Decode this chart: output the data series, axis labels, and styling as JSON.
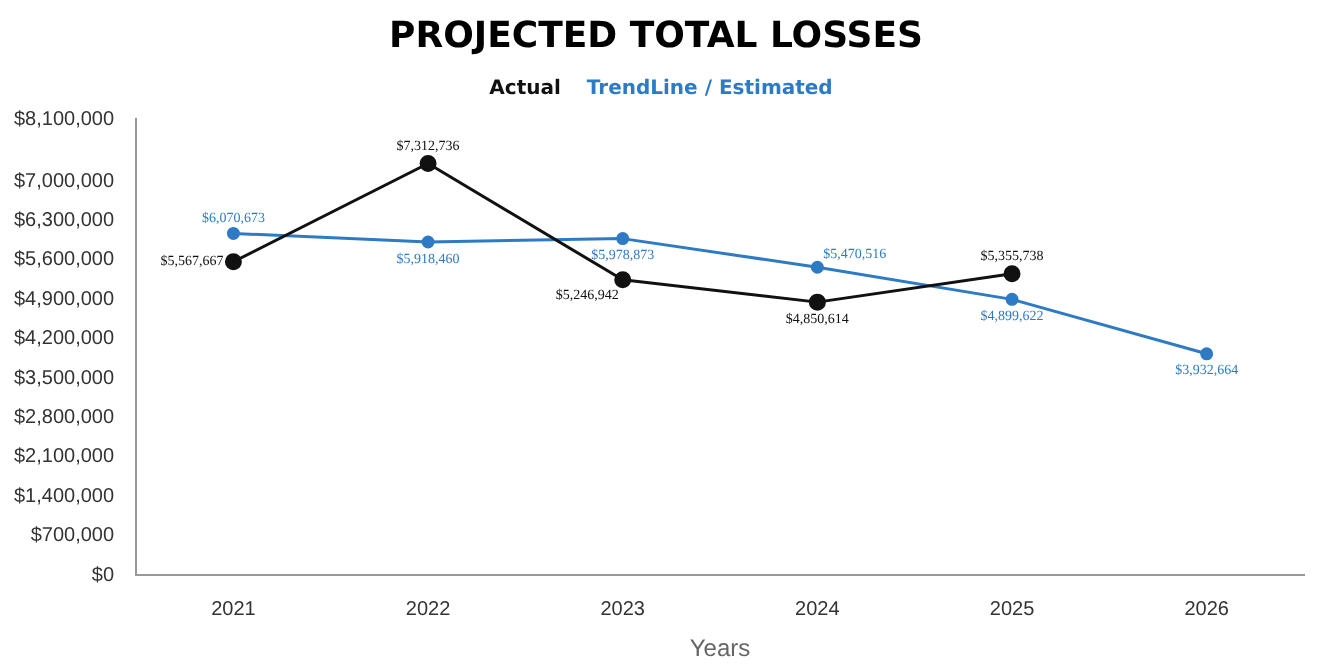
{
  "chart_data": {
    "type": "line",
    "title": "PROJECTED TOTAL LOSSES",
    "xlabel": "Years",
    "categories": [
      "2021",
      "2022",
      "2023",
      "2024",
      "2025",
      "2026"
    ],
    "series": [
      {
        "name": "Actual",
        "color": "#111111",
        "values": [
          5567667,
          7312736,
          5246942,
          4850614,
          5355738,
          null
        ],
        "value_labels": [
          "$5,567,667",
          "$7,312,736",
          "$5,246,942",
          "$4,850,614",
          "$5,355,738",
          null
        ]
      },
      {
        "name": "TrendLine / Estimated",
        "color": "#2e7bc4",
        "values": [
          6070673,
          5918460,
          5978873,
          5470516,
          4899622,
          3932664
        ],
        "value_labels": [
          "$6,070,673",
          "$5,918,460",
          "$5,978,873",
          "$5,470,516",
          "$4,899,622",
          "$3,932,664"
        ]
      }
    ],
    "ylim": [
      0,
      8100000
    ],
    "yticks": [
      {
        "value": 0,
        "label": "$0"
      },
      {
        "value": 700000,
        "label": "$700,000"
      },
      {
        "value": 1400000,
        "label": "$1,400,000"
      },
      {
        "value": 2100000,
        "label": "$2,100,000"
      },
      {
        "value": 2800000,
        "label": "$2,800,000"
      },
      {
        "value": 3500000,
        "label": "$3,500,000"
      },
      {
        "value": 4200000,
        "label": "$4,200,000"
      },
      {
        "value": 4900000,
        "label": "$4,900,000"
      },
      {
        "value": 5600000,
        "label": "$5,600,000"
      },
      {
        "value": 6300000,
        "label": "$6,300,000"
      },
      {
        "value": 7000000,
        "label": "$7,000,000"
      },
      {
        "value": 8100000,
        "label": "$8,100,000"
      }
    ],
    "grid": false,
    "legend": "top",
    "marker": "circle",
    "line_style": "solid"
  }
}
